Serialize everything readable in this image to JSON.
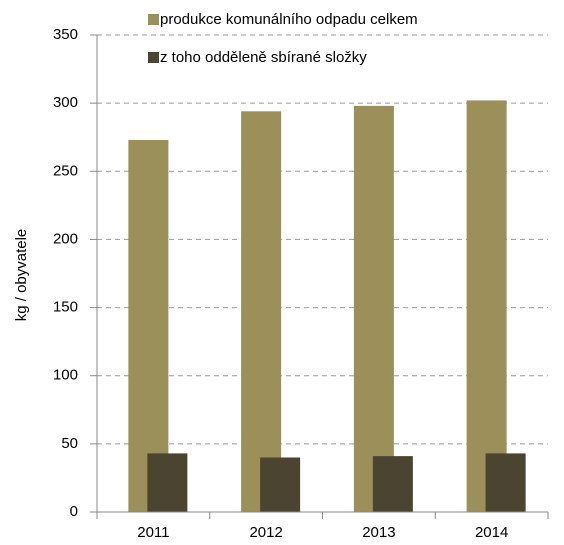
{
  "chart_data": {
    "type": "bar",
    "y_label": "kg / obyvatele",
    "categories": [
      "2011",
      "2012",
      "2013",
      "2014"
    ],
    "series": [
      {
        "name": "produkce komunálního odpadu celkem",
        "color": "#9b8f5a",
        "values": [
          273,
          294,
          298,
          302
        ]
      },
      {
        "name": "z toho odděleně sbírané složky",
        "color": "#4a4430",
        "values": [
          43,
          40,
          41,
          43
        ]
      }
    ],
    "ylim": [
      0,
      350
    ],
    "yticks": [
      0,
      50,
      100,
      150,
      200,
      250,
      300,
      350
    ],
    "grid": true
  }
}
